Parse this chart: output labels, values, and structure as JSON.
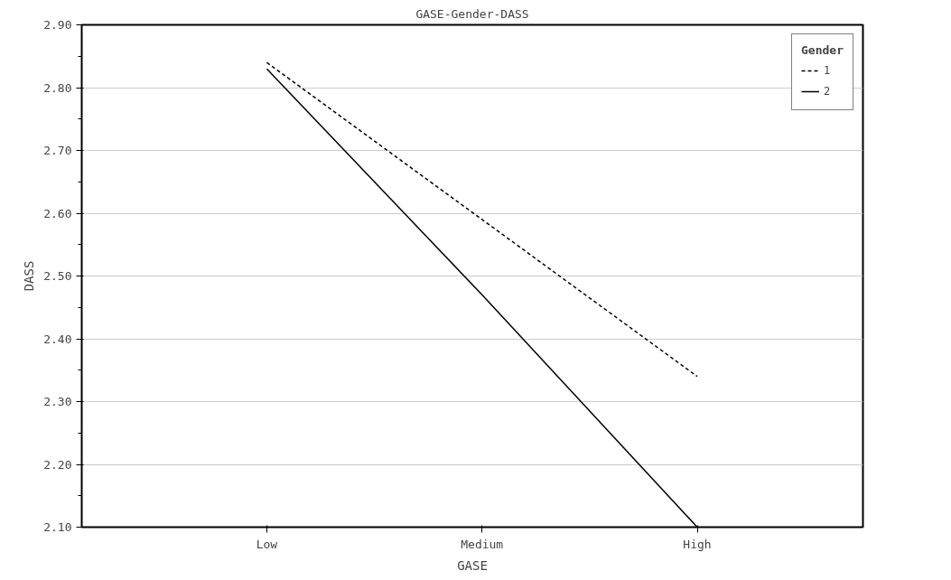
{
  "chart_data": {
    "type": "line",
    "title": "GASE-Gender-DASS",
    "xlabel": "GASE",
    "ylabel": "DASS",
    "legend_title": "Gender",
    "categories": [
      "Low",
      "Medium",
      "High"
    ],
    "series": [
      {
        "name": "1",
        "color": "#000000",
        "line_style": "dashed",
        "values": [
          2.84,
          2.59,
          2.34
        ]
      },
      {
        "name": "2",
        "color": "#000000",
        "line_style": "solid",
        "values": [
          2.83,
          2.47,
          2.1
        ]
      }
    ],
    "ylim": [
      2.1,
      2.9
    ],
    "yticks": [
      {
        "value": 2.1,
        "label": "2.10"
      },
      {
        "value": 2.2,
        "label": "2.20"
      },
      {
        "value": 2.3,
        "label": "2.30"
      },
      {
        "value": 2.4,
        "label": "2.40"
      },
      {
        "value": 2.5,
        "label": "2.50"
      },
      {
        "value": 2.6,
        "label": "2.60"
      },
      {
        "value": 2.7,
        "label": "2.70"
      },
      {
        "value": 2.8,
        "label": "2.80"
      },
      {
        "value": 2.9,
        "label": "2.90"
      }
    ],
    "grid": "y",
    "legend": "top right"
  }
}
